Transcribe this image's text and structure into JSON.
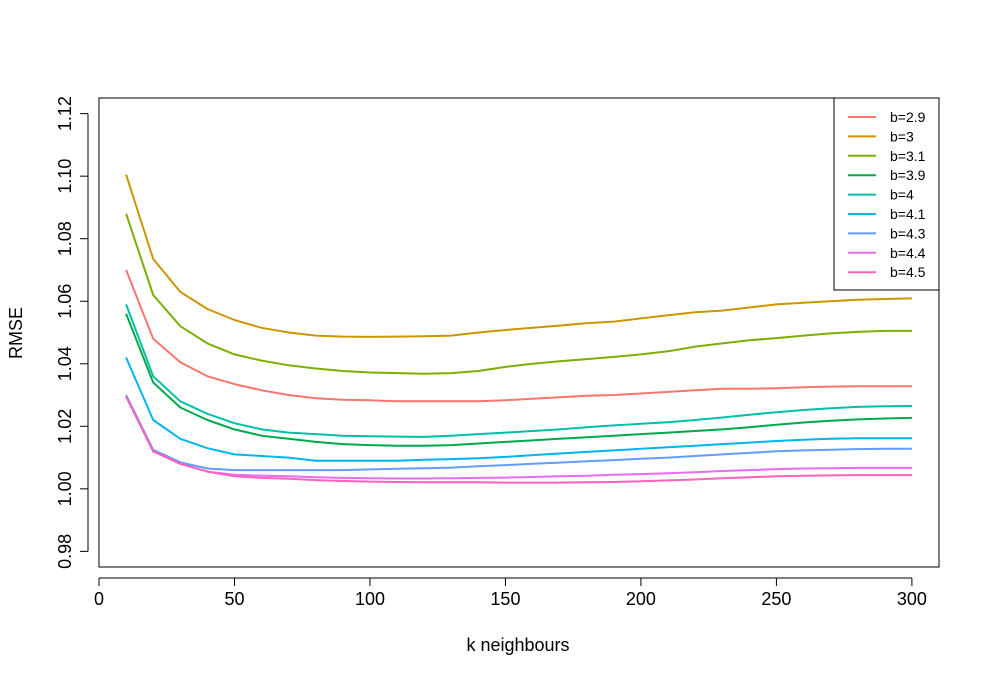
{
  "chart_data": {
    "type": "line",
    "title": "",
    "xlabel": "k neighbours",
    "ylabel": "RMSE",
    "xlim": [
      0,
      310
    ],
    "ylim": [
      0.975,
      1.125
    ],
    "xticks": [
      0,
      50,
      100,
      150,
      200,
      250,
      300
    ],
    "yticks": [
      0.98,
      1.0,
      1.02,
      1.04,
      1.06,
      1.08,
      1.1,
      1.12
    ],
    "ytick_labels": [
      "0.98",
      "1.00",
      "1.02",
      "1.04",
      "1.06",
      "1.08",
      "1.10",
      "1.12"
    ],
    "legend_position": "top-right",
    "grid": false,
    "x": [
      10,
      20,
      30,
      40,
      50,
      60,
      70,
      80,
      90,
      100,
      110,
      120,
      130,
      140,
      150,
      160,
      170,
      180,
      190,
      200,
      210,
      220,
      230,
      240,
      250,
      260,
      270,
      280,
      290,
      300
    ],
    "series": [
      {
        "name": "b=2.9",
        "color": "#F8766D",
        "values": [
          1.07,
          1.048,
          1.0405,
          1.036,
          1.0335,
          1.0315,
          1.03,
          1.029,
          1.0285,
          1.0283,
          1.028,
          1.028,
          1.028,
          1.028,
          1.0283,
          1.0288,
          1.0293,
          1.0298,
          1.03,
          1.0305,
          1.031,
          1.0315,
          1.032,
          1.032,
          1.0322,
          1.0325,
          1.0327,
          1.0328,
          1.0328,
          1.0328
        ]
      },
      {
        "name": "b=3",
        "color": "#CD9600",
        "values": [
          1.1005,
          1.0735,
          1.063,
          1.0575,
          1.054,
          1.0515,
          1.05,
          1.049,
          1.0487,
          1.0486,
          1.0487,
          1.0488,
          1.049,
          1.05,
          1.0508,
          1.0515,
          1.0522,
          1.053,
          1.0535,
          1.0545,
          1.0555,
          1.0565,
          1.057,
          1.058,
          1.059,
          1.0595,
          1.06,
          1.0605,
          1.0607,
          1.0609
        ]
      },
      {
        "name": "b=3.1",
        "color": "#7CAE00",
        "values": [
          1.088,
          1.062,
          1.052,
          1.0465,
          1.043,
          1.041,
          1.0395,
          1.0385,
          1.0377,
          1.0372,
          1.037,
          1.0368,
          1.037,
          1.0377,
          1.039,
          1.04,
          1.0408,
          1.0415,
          1.0422,
          1.043,
          1.044,
          1.0455,
          1.0465,
          1.0475,
          1.0482,
          1.049,
          1.0497,
          1.0502,
          1.0505,
          1.0505
        ]
      },
      {
        "name": "b=3.9",
        "color": "#00A94C",
        "values": [
          1.056,
          1.034,
          1.026,
          1.022,
          1.019,
          1.017,
          1.016,
          1.015,
          1.0143,
          1.014,
          1.0138,
          1.0138,
          1.014,
          1.0145,
          1.015,
          1.0155,
          1.016,
          1.0165,
          1.017,
          1.0175,
          1.018,
          1.0185,
          1.019,
          1.0197,
          1.0205,
          1.0212,
          1.0218,
          1.0222,
          1.0225,
          1.0227
        ]
      },
      {
        "name": "b=4",
        "color": "#00BFA5",
        "values": [
          1.059,
          1.036,
          1.028,
          1.024,
          1.021,
          1.019,
          1.018,
          1.0175,
          1.017,
          1.0168,
          1.0167,
          1.0166,
          1.017,
          1.0175,
          1.018,
          1.0185,
          1.019,
          1.0197,
          1.0203,
          1.0208,
          1.0213,
          1.022,
          1.0228,
          1.0237,
          1.0245,
          1.0252,
          1.0258,
          1.0262,
          1.0264,
          1.0265
        ]
      },
      {
        "name": "b=4.1",
        "color": "#00B4EF",
        "values": [
          1.042,
          1.022,
          1.016,
          1.013,
          1.011,
          1.0105,
          1.01,
          1.009,
          1.009,
          1.009,
          1.009,
          1.0093,
          1.0095,
          1.0098,
          1.0102,
          1.0108,
          1.0113,
          1.0118,
          1.0123,
          1.0128,
          1.0133,
          1.0138,
          1.0143,
          1.0148,
          1.0153,
          1.0157,
          1.016,
          1.0162,
          1.0162,
          1.0162
        ]
      },
      {
        "name": "b=4.3",
        "color": "#619CFF",
        "values": [
          1.03,
          1.0125,
          1.0085,
          1.0065,
          1.006,
          1.006,
          1.006,
          1.006,
          1.006,
          1.0062,
          1.0064,
          1.0066,
          1.0068,
          1.0072,
          1.0076,
          1.008,
          1.0084,
          1.0088,
          1.0092,
          1.0096,
          1.01,
          1.0105,
          1.011,
          1.0115,
          1.012,
          1.0123,
          1.0125,
          1.0127,
          1.0128,
          1.0128
        ]
      },
      {
        "name": "b=4.4",
        "color": "#E76BF3",
        "values": [
          1.0295,
          1.012,
          1.008,
          1.0055,
          1.0045,
          1.0042,
          1.004,
          1.0037,
          1.0035,
          1.0034,
          1.0033,
          1.0033,
          1.0034,
          1.0035,
          1.0036,
          1.0038,
          1.004,
          1.0042,
          1.0045,
          1.0047,
          1.005,
          1.0053,
          1.0057,
          1.006,
          1.0063,
          1.0065,
          1.0066,
          1.0067,
          1.0067,
          1.0067
        ]
      },
      {
        "name": "b=4.5",
        "color": "#FF62BC",
        "values": [
          1.0295,
          1.012,
          1.008,
          1.0055,
          1.004,
          1.0035,
          1.0032,
          1.0028,
          1.0025,
          1.0023,
          1.0022,
          1.0021,
          1.0021,
          1.0021,
          1.002,
          1.002,
          1.002,
          1.0021,
          1.0022,
          1.0024,
          1.0027,
          1.003,
          1.0034,
          1.0037,
          1.004,
          1.0042,
          1.0043,
          1.0044,
          1.0044,
          1.0044
        ]
      }
    ]
  }
}
